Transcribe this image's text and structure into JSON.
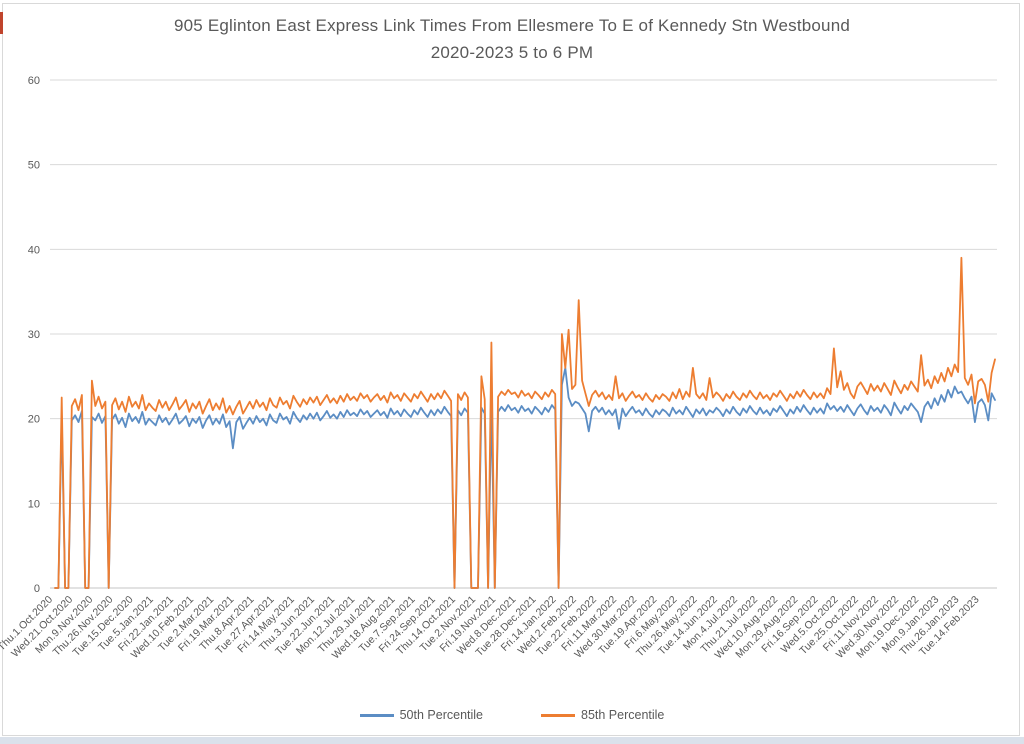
{
  "title": {
    "line1": "905 Eglinton East Express Link Times From Ellesmere To E of Kennedy Stn Westbound",
    "line2": "2020-2023 5 to 6 PM"
  },
  "colors": {
    "text": "#595959",
    "grid": "#d9d9d9",
    "axis_line": "#c6c6c6",
    "series_50th": "#5b8dc4",
    "series_85th": "#ed7d31",
    "bottom_strip": "#dae1eb",
    "left_edge_mark": "#c0442c"
  },
  "chart_data": {
    "type": "line",
    "title_line1": "905 Eglinton East Express Link Times From Ellesmere To E of Kennedy Stn Westbound",
    "title_line2": "2020-2023 5 to 6 PM",
    "xlabel": "",
    "ylabel": "",
    "ylim": [
      0,
      60
    ],
    "yticks": [
      0,
      10,
      20,
      30,
      40,
      50,
      60
    ],
    "grid": "horizontal",
    "legend_position": "bottom",
    "label_every": 6,
    "x_labels": [
      "Thu.1.Oct.2020",
      "Wed.21.Oct.2020",
      "Mon.9.Nov.2020",
      "Thu.26.Nov.2020",
      "Tue.15.Dec.2020",
      "Tue.5.Jan.2021",
      "Fri.22.Jan.2021",
      "Wed.10.Feb.2021",
      "Tue.2.Mar.2021",
      "Fri.19.Mar.2021",
      "Thu.8.Apr.2021",
      "Tue.27.Apr.2021",
      "Fri.14.May.2021",
      "Thu.3.Jun.2021",
      "Tue.22.Jun.2021",
      "Mon.12.Jul.2021",
      "Thu.29.Jul.2021",
      "Wed.18.Aug.2021",
      "Tue.7.Sep.2021",
      "Fri.24.Sep.2021",
      "Thu.14.Oct.2021",
      "Tue.2.Nov.2021",
      "Fri.19.Nov.2021",
      "Wed.8.Dec.2021",
      "Tue.28.Dec.2021",
      "Fri.14.Jan.2022",
      "Wed.2.Feb.2022",
      "Tue.22.Feb.2022",
      "Fri.11.Mar.2022",
      "Wed.30.Mar.2022",
      "Tue.19.Apr.2022",
      "Fri.6.May.2022",
      "Thu.26.May.2022",
      "Tue.14.Jun.2022",
      "Mon.4.Jul.2022",
      "Thu.21.Jul.2022",
      "Wed.10.Aug.2022",
      "Mon.29.Aug.2022",
      "Fri.16.Sep.2022",
      "Wed.5.Oct.2022",
      "Tue.25.Oct.2022",
      "Fri.11.Nov.2022",
      "Wed.30.Nov.2022",
      "Mon.19.Dec.2022",
      "Mon.9.Jan.2023",
      "Thu.26.Jan.2023",
      "Tue.14.Feb.2023"
    ],
    "series": [
      {
        "name": "50th Percentile",
        "color": "#5b8dc4",
        "values": [
          0,
          0,
          20.3,
          0,
          0,
          19.8,
          20.4,
          19.6,
          20.9,
          0,
          0,
          20.2,
          19.8,
          20.6,
          19.5,
          20.3,
          0,
          19.9,
          20.5,
          19.4,
          20.1,
          19.0,
          20.6,
          19.7,
          20.2,
          19.5,
          20.8,
          19.3,
          20.0,
          19.6,
          19.2,
          20.4,
          19.6,
          20.1,
          19.3,
          19.9,
          20.6,
          19.4,
          19.8,
          20.3,
          19.1,
          20.0,
          19.5,
          20.2,
          18.9,
          19.8,
          20.4,
          19.3,
          20.0,
          19.4,
          20.5,
          19.0,
          19.7,
          16.5,
          19.6,
          20.2,
          18.8,
          19.5,
          20.1,
          19.4,
          20.3,
          19.6,
          20.0,
          19.2,
          20.5,
          19.8,
          19.5,
          20.6,
          19.9,
          20.2,
          19.4,
          20.8,
          20.1,
          19.6,
          20.4,
          19.9,
          20.6,
          20.0,
          20.7,
          19.8,
          20.3,
          20.9,
          20.1,
          20.5,
          20.0,
          20.8,
          20.2,
          21.0,
          20.4,
          20.7,
          20.3,
          21.1,
          20.5,
          20.9,
          20.2,
          20.6,
          21.0,
          20.4,
          20.8,
          20.1,
          21.2,
          20.5,
          20.9,
          20.3,
          21.1,
          20.6,
          20.2,
          21.0,
          20.5,
          21.3,
          20.7,
          20.2,
          21.0,
          20.4,
          21.1,
          20.6,
          21.4,
          20.8,
          20.3,
          0,
          21.0,
          20.4,
          21.2,
          20.7,
          0,
          0,
          0,
          21.3,
          20.6,
          0,
          21.5,
          0,
          20.8,
          21.4,
          20.9,
          21.6,
          21.0,
          21.3,
          20.7,
          21.5,
          20.9,
          21.2,
          20.6,
          21.4,
          21.0,
          20.5,
          21.3,
          20.8,
          21.6,
          21.1,
          0,
          24.0,
          26.0,
          22.5,
          21.5,
          22.0,
          21.8,
          21.2,
          20.6,
          18.5,
          20.9,
          21.4,
          20.8,
          21.3,
          20.5,
          21.0,
          20.4,
          21.1,
          18.8,
          21.2,
          20.3,
          20.9,
          21.4,
          20.7,
          21.0,
          20.4,
          21.2,
          20.6,
          20.2,
          21.0,
          20.5,
          21.1,
          20.8,
          20.3,
          21.3,
          20.6,
          21.0,
          20.5,
          21.4,
          20.8,
          20.2,
          21.1,
          20.6,
          21.2,
          20.4,
          21.0,
          20.7,
          21.3,
          20.9,
          20.3,
          21.1,
          20.6,
          21.4,
          20.8,
          20.4,
          21.2,
          20.7,
          21.5,
          20.9,
          20.5,
          21.3,
          20.6,
          21.0,
          20.4,
          21.2,
          20.8,
          21.5,
          20.9,
          20.3,
          21.1,
          20.6,
          21.4,
          20.8,
          21.6,
          21.0,
          20.5,
          21.3,
          20.7,
          21.2,
          20.6,
          21.8,
          21.1,
          21.5,
          20.9,
          21.4,
          20.8,
          21.6,
          21.0,
          20.4,
          21.2,
          21.7,
          21.0,
          20.5,
          21.5,
          20.9,
          21.3,
          20.7,
          21.6,
          21.1,
          20.4,
          21.9,
          21.2,
          20.6,
          21.5,
          21.0,
          21.8,
          21.3,
          20.8,
          19.6,
          21.4,
          22.0,
          21.2,
          22.4,
          21.6,
          22.8,
          22.0,
          23.4,
          22.5,
          23.8,
          23.0,
          23.2,
          22.4,
          21.8,
          22.6,
          19.6,
          21.9,
          22.3,
          21.6,
          19.8,
          23.0,
          22.2
        ]
      },
      {
        "name": "85th Percentile",
        "color": "#ed7d31",
        "values": [
          0,
          0,
          22.5,
          0,
          0,
          21.5,
          22.3,
          21.0,
          22.8,
          0,
          0,
          24.5,
          21.5,
          22.6,
          21.2,
          22.0,
          0,
          21.6,
          22.4,
          21.1,
          22.0,
          20.8,
          22.6,
          21.4,
          22.0,
          21.2,
          22.8,
          21.0,
          21.8,
          21.3,
          20.9,
          22.2,
          21.3,
          22.0,
          21.0,
          21.7,
          22.5,
          21.1,
          21.6,
          22.2,
          20.8,
          21.8,
          21.2,
          22.0,
          20.6,
          21.5,
          22.3,
          21.0,
          21.8,
          21.1,
          22.4,
          20.7,
          21.5,
          20.5,
          21.4,
          22.1,
          20.6,
          21.3,
          22.0,
          21.2,
          22.2,
          21.4,
          21.9,
          21.0,
          22.4,
          21.6,
          21.3,
          22.5,
          21.7,
          22.1,
          21.2,
          22.7,
          22.0,
          21.4,
          22.3,
          21.7,
          22.5,
          21.9,
          22.6,
          21.6,
          22.2,
          22.8,
          21.9,
          22.4,
          21.8,
          22.7,
          22.0,
          22.9,
          22.2,
          22.6,
          22.1,
          23.0,
          22.4,
          22.8,
          22.0,
          22.5,
          22.9,
          22.2,
          22.7,
          21.9,
          23.1,
          22.4,
          22.8,
          22.1,
          23.0,
          22.5,
          22.0,
          22.9,
          22.4,
          23.2,
          22.6,
          22.0,
          22.9,
          22.3,
          23.0,
          22.4,
          23.3,
          22.7,
          22.1,
          0,
          22.9,
          22.2,
          23.1,
          22.5,
          0,
          0,
          0,
          25.0,
          22.3,
          0,
          29.0,
          0,
          22.6,
          23.2,
          22.8,
          23.4,
          22.9,
          23.1,
          22.5,
          23.3,
          22.7,
          23.0,
          22.4,
          23.2,
          22.8,
          22.3,
          23.1,
          22.6,
          23.4,
          22.9,
          0,
          30.0,
          26.0,
          30.5,
          23.5,
          24.0,
          34.0,
          24.5,
          23.0,
          21.5,
          22.8,
          23.3,
          22.6,
          23.1,
          22.3,
          22.8,
          22.2,
          25.0,
          22.4,
          23.0,
          22.1,
          22.7,
          23.2,
          22.5,
          22.8,
          22.2,
          23.0,
          22.4,
          22.0,
          22.8,
          22.3,
          22.9,
          22.6,
          22.1,
          23.1,
          22.4,
          23.5,
          22.3,
          23.2,
          22.6,
          26.0,
          22.9,
          22.4,
          23.0,
          22.2,
          24.8,
          22.5,
          23.1,
          22.7,
          22.1,
          22.9,
          22.4,
          23.2,
          22.6,
          22.2,
          23.0,
          22.5,
          23.3,
          22.7,
          22.3,
          23.1,
          22.4,
          22.8,
          22.2,
          23.0,
          22.6,
          23.3,
          22.7,
          22.1,
          22.9,
          22.4,
          23.2,
          22.6,
          23.4,
          22.8,
          22.3,
          23.1,
          22.5,
          23.0,
          22.4,
          23.6,
          22.9,
          28.3,
          23.7,
          25.6,
          23.4,
          24.2,
          23.0,
          22.4,
          23.8,
          24.3,
          23.6,
          22.9,
          24.1,
          23.3,
          23.9,
          23.2,
          24.2,
          23.5,
          22.8,
          24.5,
          23.7,
          23.0,
          24.0,
          23.4,
          24.4,
          23.8,
          23.2,
          27.5,
          23.9,
          24.6,
          23.6,
          25.0,
          24.2,
          25.4,
          24.4,
          26.0,
          25.0,
          26.4,
          25.5,
          39.0,
          24.8,
          24.0,
          25.2,
          21.8,
          24.4,
          24.7,
          24.0,
          22.0,
          25.4,
          27.0
        ]
      }
    ]
  }
}
